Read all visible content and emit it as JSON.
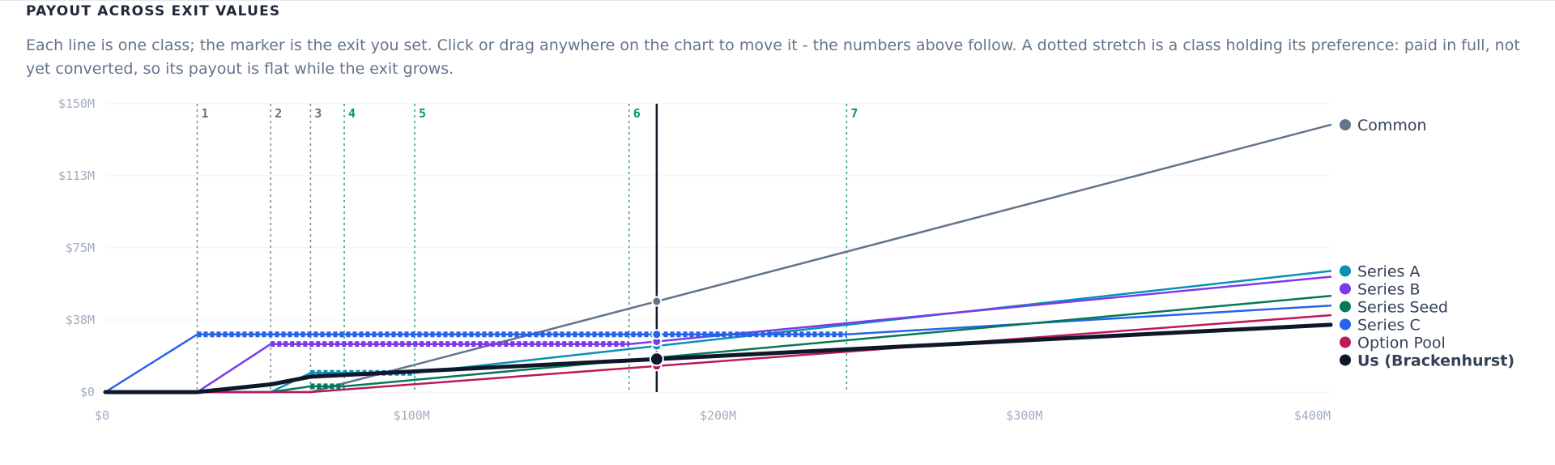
{
  "header": {
    "title": "PAYOUT ACROSS EXIT VALUES",
    "description": "Each line is one class; the marker is the exit you set. Click or drag anywhere on the chart to move it - the numbers above follow. A dotted stretch is a class holding its preference: paid in full, not yet converted, so its payout is flat while the exit grows."
  },
  "chart_data": {
    "type": "line",
    "xlabel": "",
    "ylabel": "",
    "xlim": [
      0,
      400
    ],
    "ylim": [
      0,
      150
    ],
    "units": "$M",
    "x_ticks": [
      {
        "value": 0,
        "label": "$0"
      },
      {
        "value": 100,
        "label": "$100M"
      },
      {
        "value": 200,
        "label": "$200M"
      },
      {
        "value": 300,
        "label": "$300M"
      },
      {
        "value": 400,
        "label": "$400M"
      }
    ],
    "y_ticks": [
      {
        "value": 0,
        "label": "$0"
      },
      {
        "value": 37.5,
        "label": "$38M"
      },
      {
        "value": 75,
        "label": "$75M"
      },
      {
        "value": 112.5,
        "label": "$113M"
      },
      {
        "value": 150,
        "label": "$150M"
      }
    ],
    "grid": true,
    "legend_position": "right",
    "selected_exit": 180,
    "breakpoints": [
      {
        "label": "1",
        "x": 30,
        "color": "#6b7280"
      },
      {
        "label": "2",
        "x": 54,
        "color": "#6b7280"
      },
      {
        "label": "3",
        "x": 67,
        "color": "#6b7280"
      },
      {
        "label": "4",
        "x": 78,
        "color": "#059669"
      },
      {
        "label": "5",
        "x": 101,
        "color": "#059669"
      },
      {
        "label": "6",
        "x": 171,
        "color": "#059669"
      },
      {
        "label": "7",
        "x": 242,
        "color": "#059669"
      }
    ],
    "series": [
      {
        "name": "Common",
        "color": "#64748b",
        "width": 2.5,
        "bold": false,
        "x": [
          0,
          54,
          67,
          400
        ],
        "y": [
          0,
          0,
          0,
          139
        ]
      },
      {
        "name": "Series A",
        "color": "#0891b2",
        "width": 2.5,
        "bold": false,
        "x": [
          0,
          54,
          67,
          101,
          400
        ],
        "y": [
          0,
          0,
          10,
          10,
          63
        ],
        "flat": [
          67,
          101
        ]
      },
      {
        "name": "Series B",
        "color": "#7c3aed",
        "width": 2.5,
        "bold": false,
        "x": [
          0,
          30,
          54,
          171,
          400
        ],
        "y": [
          0,
          0,
          25,
          25,
          60
        ],
        "flat": [
          54,
          171
        ]
      },
      {
        "name": "Series C",
        "color": "#2563eb",
        "width": 2.5,
        "bold": false,
        "x": [
          0,
          30,
          242,
          400
        ],
        "y": [
          0,
          30,
          30,
          45
        ],
        "flat": [
          30,
          242
        ]
      },
      {
        "name": "Series Seed",
        "color": "#047857",
        "width": 2.5,
        "bold": false,
        "x": [
          0,
          54,
          67,
          78,
          400
        ],
        "y": [
          0,
          0,
          3,
          3,
          50
        ],
        "flat": [
          67,
          78
        ]
      },
      {
        "name": "Option Pool",
        "color": "#be185d",
        "width": 2.5,
        "bold": false,
        "x": [
          0,
          67,
          400
        ],
        "y": [
          0,
          0,
          40
        ]
      },
      {
        "name": "Us (Brackenhurst)",
        "color": "#0f172a",
        "width": 5,
        "bold": true,
        "x": [
          0,
          30,
          54,
          67,
          400
        ],
        "y": [
          0,
          0,
          4,
          8,
          35
        ]
      }
    ]
  },
  "colors": {
    "grid": "#eef1f5",
    "tick": "#a0aec0",
    "marker_line": "#111827"
  }
}
